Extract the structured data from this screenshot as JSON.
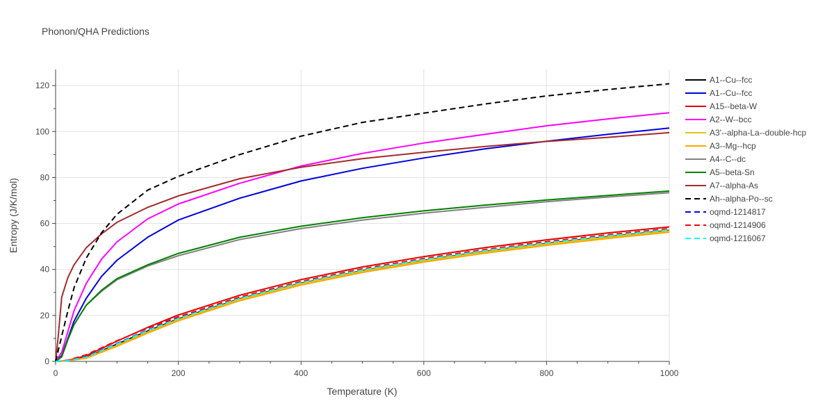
{
  "chart_data": {
    "type": "line",
    "title": "Phonon/QHA Predictions",
    "xlabel": "Temperature (K)",
    "ylabel": "Entropy (J/K/mol)",
    "xlim": [
      0,
      1000
    ],
    "ylim": [
      0,
      127
    ],
    "x_ticks": [
      0,
      200,
      400,
      600,
      800,
      1000
    ],
    "y_ticks": [
      0,
      20,
      40,
      60,
      80,
      100,
      120
    ],
    "grid": true,
    "legend_position": "right",
    "series": [
      {
        "name": "A1--Cu--fcc",
        "color": "#000000",
        "dash": "solid",
        "x": [
          0,
          20,
          50,
          100,
          150,
          200,
          300,
          400,
          500,
          600,
          700,
          800,
          900,
          1000
        ],
        "y": [
          0,
          0.2,
          1.8,
          7.5,
          13.2,
          18.5,
          27.2,
          34.0,
          39.5,
          44.0,
          47.9,
          51.3,
          54.3,
          57.0
        ]
      },
      {
        "name": "A1--Cu--fcc",
        "color": "#0000dd",
        "dash": "solid",
        "x": [
          0,
          10,
          20,
          30,
          50,
          75,
          100,
          150,
          200,
          300,
          400,
          500,
          600,
          700,
          800,
          900,
          1000
        ],
        "y": [
          0,
          2.5,
          10.0,
          17.5,
          27.5,
          37.0,
          44.0,
          54.0,
          61.5,
          71.0,
          78.5,
          84.0,
          88.5,
          92.5,
          95.8,
          98.8,
          101.5
        ]
      },
      {
        "name": "A15--beta-W",
        "color": "#dd0000",
        "dash": "solid",
        "x": [
          0,
          20,
          50,
          100,
          150,
          200,
          300,
          400,
          500,
          600,
          700,
          800,
          900,
          1000
        ],
        "y": [
          0,
          0.4,
          2.5,
          8.8,
          14.8,
          20.2,
          28.8,
          35.6,
          41.1,
          45.6,
          49.5,
          52.9,
          55.9,
          58.5
        ]
      },
      {
        "name": "A2--W--bcc",
        "color": "#ff00ff",
        "dash": "solid",
        "x": [
          0,
          10,
          20,
          30,
          50,
          75,
          100,
          150,
          200,
          300,
          400,
          500,
          600,
          700,
          800,
          900,
          1000
        ],
        "y": [
          0,
          4.0,
          13.0,
          22.0,
          34.0,
          44.5,
          52.0,
          62.0,
          68.5,
          77.5,
          85.0,
          90.5,
          95.0,
          98.8,
          102.5,
          105.5,
          108.2
        ]
      },
      {
        "name": "A3'--alpha-La--double-hcp",
        "color": "#dfc21c",
        "dash": "solid",
        "x": [
          0,
          20,
          50,
          100,
          150,
          200,
          300,
          400,
          500,
          600,
          700,
          800,
          900,
          1000
        ],
        "y": [
          0,
          0.2,
          1.6,
          7.0,
          12.8,
          18.2,
          27.0,
          33.8,
          39.3,
          43.8,
          47.7,
          51.1,
          54.1,
          56.8
        ]
      },
      {
        "name": "A3--Mg--hcp",
        "color": "#ffa500",
        "dash": "solid",
        "x": [
          0,
          20,
          50,
          100,
          150,
          200,
          300,
          400,
          500,
          600,
          700,
          800,
          900,
          1000
        ],
        "y": [
          0,
          0.2,
          1.4,
          6.6,
          12.3,
          17.7,
          26.4,
          33.2,
          38.7,
          43.2,
          47.1,
          50.5,
          53.5,
          56.2
        ]
      },
      {
        "name": "A4--C--dc",
        "color": "#808080",
        "dash": "solid",
        "x": [
          0,
          10,
          20,
          30,
          50,
          75,
          100,
          150,
          200,
          300,
          400,
          500,
          600,
          700,
          800,
          900,
          1000
        ],
        "y": [
          0,
          2.0,
          9.5,
          16.0,
          24.5,
          30.5,
          35.5,
          41.5,
          46.0,
          53.0,
          57.8,
          61.5,
          64.5,
          67.0,
          69.5,
          71.5,
          73.4
        ]
      },
      {
        "name": "A5--beta-Sn",
        "color": "#008000",
        "dash": "solid",
        "x": [
          0,
          10,
          20,
          30,
          50,
          75,
          100,
          150,
          200,
          300,
          400,
          500,
          600,
          700,
          800,
          900,
          1000
        ],
        "y": [
          0,
          2.0,
          9.5,
          16.0,
          24.5,
          31.0,
          36.0,
          42.0,
          47.0,
          54.0,
          58.8,
          62.5,
          65.5,
          68.0,
          70.2,
          72.2,
          74.1
        ]
      },
      {
        "name": "A7--alpha-As",
        "color": "#a52a2a",
        "dash": "solid",
        "x": [
          0,
          4,
          10,
          20,
          30,
          50,
          75,
          100,
          150,
          200,
          300,
          400,
          500,
          600,
          700,
          800,
          900,
          1000
        ],
        "y": [
          0,
          10.0,
          28.0,
          36.5,
          42.0,
          49.5,
          55.5,
          60.5,
          67.0,
          72.0,
          79.5,
          84.5,
          88.2,
          91.0,
          93.5,
          95.7,
          97.5,
          99.5
        ]
      },
      {
        "name": "Ah--alpha-Po--sc",
        "color": "#000000",
        "dash": "dash",
        "x": [
          0,
          10,
          20,
          30,
          50,
          75,
          100,
          150,
          200,
          300,
          400,
          500,
          600,
          700,
          800,
          900,
          1000
        ],
        "y": [
          0,
          11.0,
          22.0,
          32.0,
          45.0,
          56.0,
          64.0,
          74.5,
          80.5,
          90.0,
          98.0,
          104.0,
          108.0,
          112.0,
          115.5,
          118.3,
          120.8
        ]
      },
      {
        "name": "oqmd-1214817",
        "color": "#0000ff",
        "dash": "dash",
        "x": [
          0,
          20,
          50,
          100,
          150,
          200,
          300,
          400,
          500,
          600,
          700,
          800,
          900,
          1000
        ],
        "y": [
          0,
          0.3,
          2.0,
          7.8,
          13.6,
          18.9,
          27.6,
          34.5,
          40.0,
          44.5,
          48.4,
          51.8,
          54.8,
          57.5
        ]
      },
      {
        "name": "oqmd-1214906",
        "color": "#ff0000",
        "dash": "dash",
        "x": [
          0,
          20,
          50,
          100,
          150,
          200,
          300,
          400,
          500,
          600,
          700,
          800,
          900,
          1000
        ],
        "y": [
          0,
          0.5,
          2.9,
          9.0,
          14.4,
          19.4,
          28.0,
          34.8,
          40.3,
          44.8,
          48.7,
          52.1,
          55.1,
          57.8
        ]
      },
      {
        "name": "oqmd-1216067",
        "color": "#00ffff",
        "dash": "dash",
        "x": [
          0,
          20,
          50,
          100,
          150,
          200,
          300,
          400,
          500,
          600,
          700,
          800,
          900,
          1000
        ],
        "y": [
          0,
          0.3,
          1.9,
          7.6,
          13.4,
          18.7,
          27.4,
          34.3,
          39.8,
          44.3,
          48.2,
          51.6,
          54.6,
          57.3
        ]
      }
    ]
  }
}
